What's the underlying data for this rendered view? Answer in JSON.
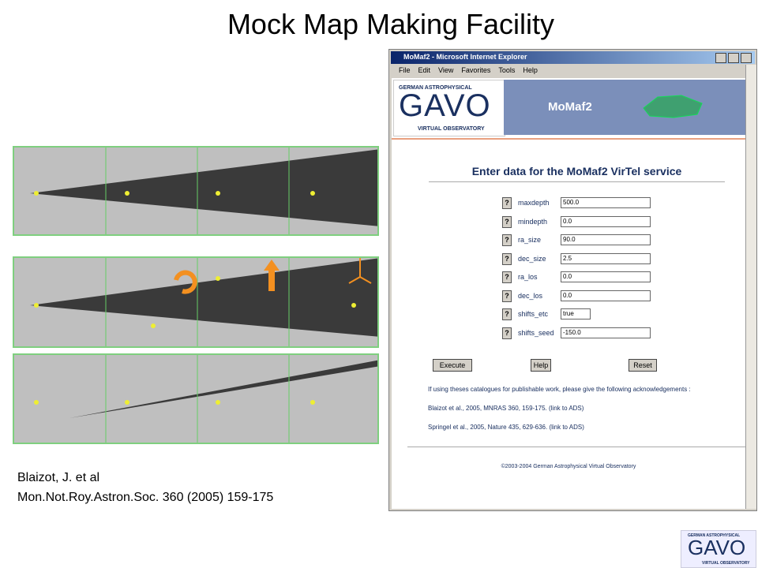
{
  "title": "Mock Map Making Facility",
  "citation": [
    "Blaizot, J. et al",
    "Mon.Not.Roy.Astron.Soc. 360 (2005) 159-175"
  ],
  "browser": {
    "window_title": "MoMaf2 - Microsoft Internet Explorer",
    "menu": [
      "File",
      "Edit",
      "View",
      "Favorites",
      "Tools",
      "Help"
    ],
    "logo": {
      "top": "GERMAN ASTROPHYSICAL",
      "main": "GAVO",
      "bottom": "VIRTUAL OBSERVATORY"
    },
    "service_name": "MoMaf2",
    "form_heading": "Enter data for the MoMaf2 VirTel service",
    "help_label": "?",
    "fields": [
      {
        "name": "maxdepth",
        "value": "500.0"
      },
      {
        "name": "mindepth",
        "value": "0.0"
      },
      {
        "name": "ra_size",
        "value": "90.0"
      },
      {
        "name": "dec_size",
        "value": "2.5"
      },
      {
        "name": "ra_los",
        "value": "0.0"
      },
      {
        "name": "dec_los",
        "value": "0.0"
      },
      {
        "name": "shifts_etc",
        "value": "true"
      },
      {
        "name": "shifts_seed",
        "value": "-150.0"
      }
    ],
    "buttons": [
      "Execute",
      "Help",
      "Reset"
    ],
    "acknowledgement": "If using theses catalogues for publishable work, please give the following acknowledgements :",
    "references": [
      "Blaizot et al., 2005, MNRAS 360, 159-175. (link to ADS)",
      "Springel et al., 2005, Nature 435, 629-636. (link to ADS)"
    ],
    "footer": "©2003-2004 German Astrophysical Virtual Observatory"
  }
}
